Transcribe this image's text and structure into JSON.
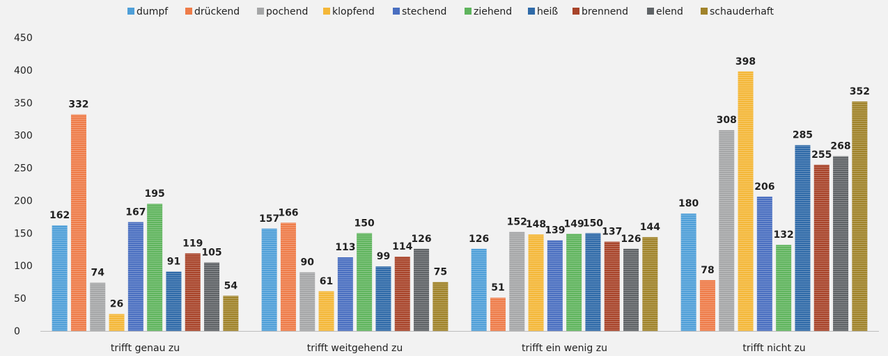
{
  "chart_data": {
    "type": "bar",
    "title": "",
    "xlabel": "",
    "ylabel": "",
    "ylim": [
      0,
      450
    ],
    "yticks": [
      0,
      50,
      100,
      150,
      200,
      250,
      300,
      350,
      400,
      450
    ],
    "grid": false,
    "legend_position": "top",
    "categories": [
      "trifft genau zu",
      "trifft weitgehend zu",
      "trifft ein wenig zu",
      "trifft nicht zu"
    ],
    "series": [
      {
        "name": "dumpf",
        "color": "#4f9fd8",
        "values": [
          162,
          157,
          126,
          180
        ]
      },
      {
        "name": "drückend",
        "color": "#ee7c49",
        "values": [
          332,
          166,
          51,
          78
        ]
      },
      {
        "name": "pochend",
        "color": "#a5a6a7",
        "values": [
          74,
          90,
          152,
          308
        ]
      },
      {
        "name": "klopfend",
        "color": "#f4b738",
        "values": [
          26,
          61,
          148,
          398
        ]
      },
      {
        "name": "stechend",
        "color": "#4a6fc0",
        "values": [
          167,
          113,
          139,
          206
        ]
      },
      {
        "name": "ziehend",
        "color": "#5fb45d",
        "values": [
          195,
          150,
          149,
          132
        ]
      },
      {
        "name": "heiß",
        "color": "#2f6aa8",
        "values": [
          91,
          99,
          150,
          285
        ]
      },
      {
        "name": "brennend",
        "color": "#a8442a",
        "values": [
          119,
          114,
          137,
          255
        ]
      },
      {
        "name": "elend",
        "color": "#5f6366",
        "values": [
          105,
          126,
          126,
          268
        ]
      },
      {
        "name": "schauderhaft",
        "color": "#a0832a",
        "values": [
          54,
          75,
          144,
          352
        ]
      }
    ]
  }
}
